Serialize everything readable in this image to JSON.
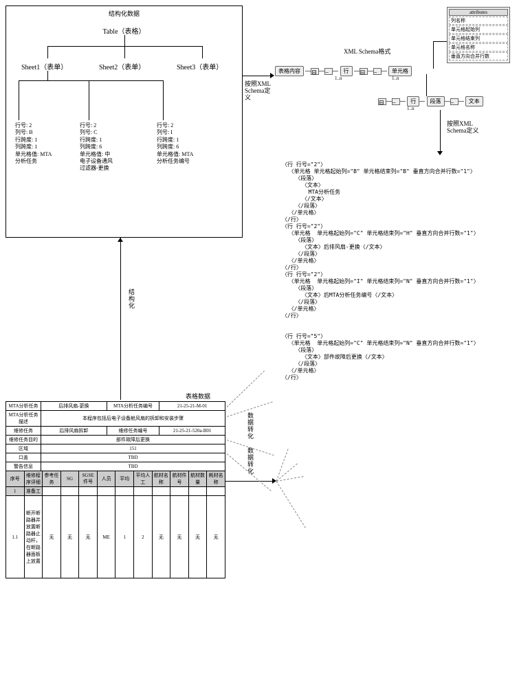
{
  "colors": {
    "fg": "#000000",
    "bg": "#ffffff",
    "pill_bg": "#eeeeee",
    "pill_border": "#666666",
    "attr_bg": "#f2f2f2",
    "header_bg": "#cccccc"
  },
  "tree": {
    "title": "结构化数据",
    "root": "Table（表格）",
    "sheets": [
      "Sheet1（表单）",
      "Sheet2（表单）",
      "Sheet3（表单）"
    ],
    "cells": [
      [
        "行号: 2",
        "列号: B",
        "行跨度: 1",
        "列跨度: 1",
        "单元格值: MTA",
        "分析任务"
      ],
      [
        "行号: 2",
        "列号: C",
        "行跨度: 1",
        "列跨度: 6",
        "单元格值: 中",
        "电子设备通风",
        "过滤器-更换"
      ],
      [
        "行号: 2",
        "列号: I",
        "行跨度: 1",
        "列跨度: 6",
        "单元格值: MTA",
        "分析任务编号"
      ]
    ]
  },
  "schema": {
    "title": "XML Schema格式",
    "chain": [
      "表格内容",
      "行",
      "单元格"
    ],
    "mult": "1..n",
    "attr_head": "attributes",
    "attrs": [
      "列名称",
      "单元格起始列",
      "单元格结束列",
      "单元格名称",
      "垂直方向合并行数"
    ],
    "tail": [
      "行",
      "段落",
      "文本"
    ]
  },
  "arrows": {
    "a1": "按照XML Schema定义",
    "a2": "按照XML Schema定义",
    "vlabel1": "结构化",
    "vlabel2": "数据转化 数据转化"
  },
  "table": {
    "caption": "表格数据",
    "rows": [
      [
        "MTA分析任务",
        "后排风扇-更换",
        "MTA分析任务编号",
        "21-25-21-M-01"
      ],
      [
        "MTA分析任务描述",
        "本程序包括后电子设备舱风扇的拆卸和安装步骤"
      ],
      [
        "维修任务",
        "后排风扇拆卸",
        "维修任务编号",
        "21-25-21-520a-B01"
      ],
      [
        "维修任务目的",
        "部件故障后更换"
      ],
      [
        "区域",
        "151"
      ],
      [
        "口盖",
        "TBD"
      ],
      [
        "警告信息",
        "TBD"
      ]
    ],
    "grid_header": [
      "序号",
      "维修程序评细",
      "参考任务",
      "SG",
      "SGSE件号",
      "人员",
      "平均",
      "平均人工",
      "航材名称",
      "航材件号",
      "航材数量",
      "耗材名称"
    ],
    "grid_rows": [
      [
        "1",
        "准备工",
        "",
        "",
        "",
        "",
        "",
        "",
        "",
        "",
        "",
        ""
      ],
      [
        "1.1",
        "断开断路器并放置断路器止动杆，在断路器面板上放置",
        "无",
        "无",
        "无",
        "ME",
        "1",
        "2",
        "无",
        "无",
        "无",
        "无"
      ]
    ]
  },
  "xml": [
    "〈行 行号=\"2\"〉",
    "  〈单元格 单元格起始列=\"B\" 单元格结束列=\"B\" 垂直方向合并行数=\"1\"〉",
    "    〈段落〉",
    "      〈文本〉",
    "        MTA分析任务",
    "      〈/文本〉",
    "    〈/段落〉",
    "  〈/单元格〉",
    "〈/行〉",
    "〈行 行号=\"2\"〉",
    "  〈单元格  单元格起始列=\"C\" 单元格结束列=\"H\" 垂直方向合并行数=\"1\"〉",
    "    〈段落〉",
    "      〈文本〉后排风扇-更换〈/文本〉",
    "    〈/段落〉",
    "  〈/单元格〉",
    "〈/行〉",
    "〈行 行号=\"2\"〉",
    "  〈单元格  单元格起始列=\"I\" 单元格结束列=\"N\" 垂直方向合并行数=\"1\"〉",
    "    〈段落〉",
    "      〈文本〉后MTA分析任务编号〈/文本〉",
    "    〈/段落〉",
    "  〈/单元格〉",
    "〈/行〉",
    "",
    "",
    "〈行 行号=\"5\"〉",
    "  〈单元格  单元格起始列=\"C\" 单元格结束列=\"N\" 垂直方向合并行数=\"1\"〉",
    "    〈段落〉",
    "      〈文本〉部件故障后更换〈/文本〉",
    "    〈/段落〉",
    "  〈/单元格〉",
    "〈/行〉"
  ]
}
